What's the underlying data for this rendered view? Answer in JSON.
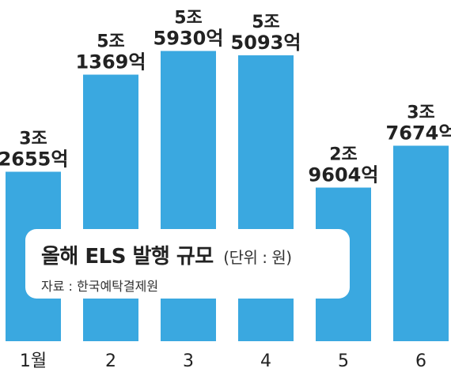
{
  "chart_data": {
    "type": "bar",
    "title": "올해 ELS 발행 규모",
    "unit": "(단위 : 원)",
    "source": "자료 : 한국예탁결제원",
    "categories": [
      "1월",
      "2",
      "3",
      "4",
      "5",
      "6"
    ],
    "values": [
      32655,
      51369,
      55930,
      55093,
      29604,
      37674
    ],
    "labels": [
      [
        "3조",
        "2655억"
      ],
      [
        "5조",
        "1369억"
      ],
      [
        "5조",
        "5930억"
      ],
      [
        "5조",
        "5093억"
      ],
      [
        "2조",
        "9604억"
      ],
      [
        "3조",
        "7674억"
      ]
    ],
    "value_unit": "억원",
    "bar_color": "#3aa8e0"
  }
}
